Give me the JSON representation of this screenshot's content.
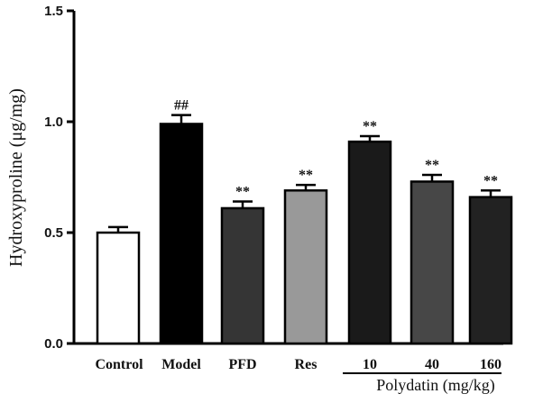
{
  "chart_data": {
    "type": "bar",
    "title": "",
    "xlabel": "",
    "ylabel": "Hydroxyproline (μg/mg)",
    "ylim": [
      0,
      1.5
    ],
    "yticks": [
      "0.0",
      "0.5",
      "1.0",
      "1.5"
    ],
    "ytick_values": [
      0,
      0.5,
      1.0,
      1.5
    ],
    "categories": [
      "Control",
      "Model",
      "PFD",
      "Res",
      "10",
      "40",
      "160"
    ],
    "values": [
      0.5,
      0.99,
      0.61,
      0.69,
      0.91,
      0.73,
      0.66
    ],
    "errors": [
      0.025,
      0.04,
      0.03,
      0.025,
      0.025,
      0.03,
      0.03
    ],
    "bar_colors": [
      "#ffffff",
      "#000000",
      "#353535",
      "#999999",
      "#1a1a1a",
      "#474747",
      "#222222"
    ],
    "annotations": [
      "",
      "##",
      "**",
      "**",
      "**",
      "**",
      "**"
    ],
    "group_label": "Polydatin (mg/kg)",
    "grid": false,
    "legend": "none"
  }
}
